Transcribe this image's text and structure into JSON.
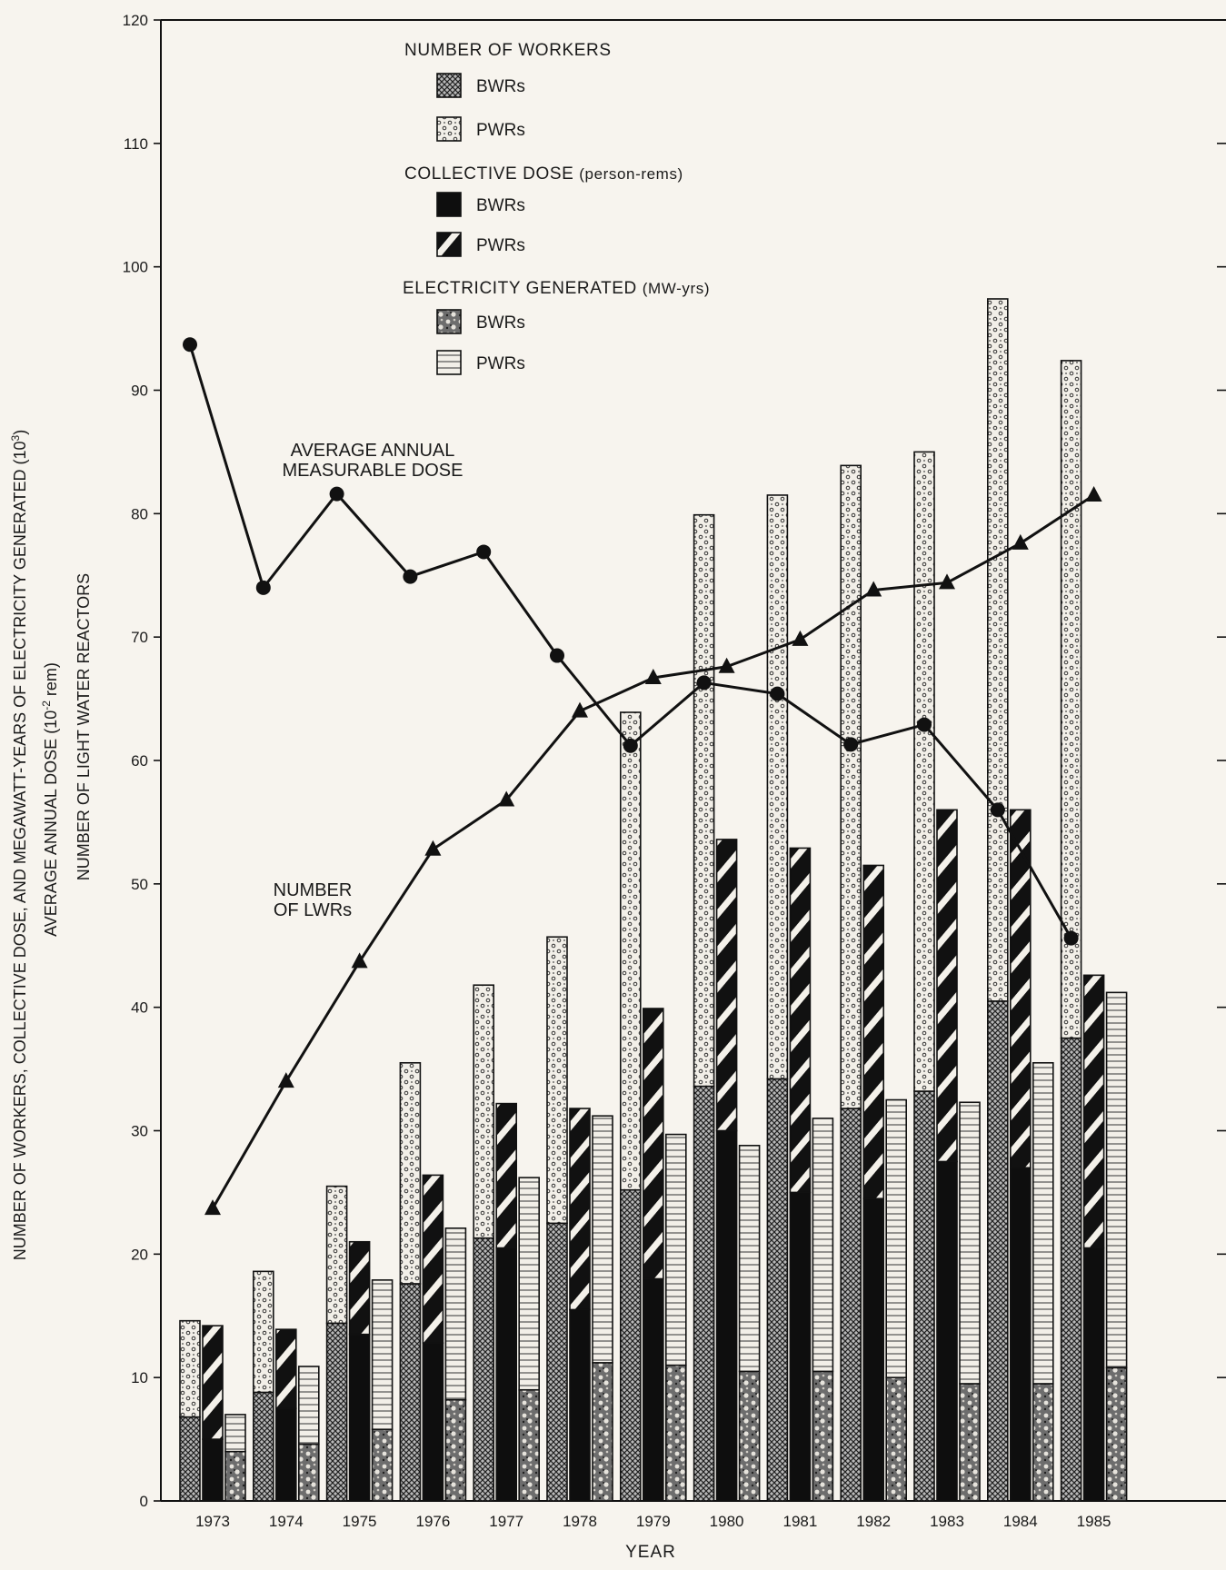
{
  "chart_data": {
    "type": "bar",
    "categories": [
      "1973",
      "1974",
      "1975",
      "1976",
      "1977",
      "1978",
      "1979",
      "1980",
      "1981",
      "1982",
      "1983",
      "1984",
      "1985"
    ],
    "xlabel": "YEAR",
    "ylabel_lines": [
      "NUMBER OF WORKERS, COLLECTIVE DOSE, AND MEGAWATT-YEARS OF ELECTRICITY GENERATED (10",
      "AVERAGE ANNUAL DOSE (10",
      "NUMBER OF LIGHT WATER REACTORS"
    ],
    "ylabel_superscripts": [
      "3",
      "-2"
    ],
    "ylabel_suffixes": [
      ")",
      " rem)"
    ],
    "ylim": [
      0,
      120
    ],
    "yticks": [
      0,
      10,
      20,
      30,
      40,
      50,
      60,
      70,
      80,
      90,
      100,
      110,
      120
    ],
    "ytick_labels": [
      "0",
      "10",
      "20",
      "30",
      "40",
      "50",
      "60",
      "70",
      "80",
      "90",
      "100",
      "110",
      "120"
    ],
    "bar_groups": [
      {
        "name": "NUMBER OF WORKERS",
        "stacked": true,
        "series": [
          {
            "name": "BWRs",
            "pattern": "crosshatch",
            "values": [
              6.8,
              8.8,
              14.4,
              17.6,
              21.3,
              22.5,
              25.2,
              33.6,
              34.2,
              31.8,
              33.2,
              40.5,
              37.5
            ]
          },
          {
            "name": "PWRs",
            "pattern": "dotted",
            "values": [
              7.8,
              9.8,
              11.1,
              17.9,
              20.5,
              23.2,
              38.7,
              46.3,
              47.3,
              52.1,
              51.8,
              56.9,
              54.9
            ]
          }
        ],
        "totals": [
          14.6,
          18.6,
          25.5,
          35.5,
          41.8,
          45.7,
          63.9,
          79.9,
          81.5,
          83.9,
          85.0,
          97.4,
          92.4
        ]
      },
      {
        "name": "COLLECTIVE DOSE (person-rems)",
        "stacked": true,
        "series": [
          {
            "name": "BWRs",
            "pattern": "solid",
            "values": [
              5.0,
              7.5,
              13.5,
              12.8,
              20.5,
              15.5,
              18.0,
              30.0,
              25.0,
              24.5,
              27.5,
              27.0,
              20.5
            ]
          },
          {
            "name": "PWRs",
            "pattern": "diagonal",
            "values": [
              9.2,
              6.4,
              7.5,
              13.6,
              11.7,
              16.3,
              21.9,
              23.6,
              27.9,
              27.0,
              28.5,
              29.0,
              22.1
            ]
          }
        ],
        "totals": [
          14.2,
          13.9,
          21.0,
          26.4,
          32.2,
          31.8,
          39.9,
          53.6,
          52.9,
          51.5,
          56.0,
          56.0,
          42.6
        ]
      },
      {
        "name": "ELECTRICITY GENERATED (MW-yrs)",
        "stacked": true,
        "series": [
          {
            "name": "BWRs",
            "pattern": "speckled",
            "values": [
              4.0,
              4.6,
              5.8,
              8.2,
              9.0,
              11.2,
              11.0,
              10.5,
              10.5,
              10.0,
              9.5,
              9.5,
              10.8
            ]
          },
          {
            "name": "PWRs",
            "pattern": "horizontal-lines",
            "values": [
              3.0,
              6.3,
              12.1,
              13.9,
              17.2,
              20.0,
              18.7,
              18.3,
              20.5,
              22.5,
              22.8,
              26.0,
              30.4
            ]
          }
        ],
        "totals": [
          7.0,
          10.9,
          17.9,
          22.1,
          26.2,
          31.2,
          29.7,
          28.8,
          31.0,
          32.5,
          32.3,
          35.5,
          41.2
        ]
      }
    ],
    "lines": [
      {
        "label_lines": [
          "AVERAGE ANNUAL",
          "MEASURABLE DOSE"
        ],
        "marker": "circle",
        "values": [
          93.7,
          74.0,
          81.6,
          74.9,
          76.9,
          68.5,
          61.2,
          66.3,
          65.4,
          61.3,
          62.9,
          56.0,
          45.6
        ]
      },
      {
        "label_lines": [
          "NUMBER",
          "OF LWRs"
        ],
        "marker": "triangle",
        "values": [
          23.7,
          34.0,
          43.7,
          52.8,
          56.8,
          64.0,
          66.7,
          67.6,
          69.8,
          73.8,
          74.4,
          77.6,
          81.5
        ]
      }
    ],
    "legend": {
      "placement": "top-center",
      "groups": [
        {
          "title": "NUMBER OF WORKERS",
          "items": [
            {
              "label": "BWRs",
              "pattern": "crosshatch"
            },
            {
              "label": "PWRs",
              "pattern": "dotted"
            }
          ]
        },
        {
          "title_main": "COLLECTIVE DOSE",
          "title_sub": "(person-rems)",
          "items": [
            {
              "label": "BWRs",
              "pattern": "solid"
            },
            {
              "label": "PWRs",
              "pattern": "diagonal"
            }
          ]
        },
        {
          "title_main": "ELECTRICITY GENERATED",
          "title_sub": "(MW-yrs)",
          "items": [
            {
              "label": "BWRs",
              "pattern": "speckled"
            },
            {
              "label": "PWRs",
              "pattern": "horizontal-lines"
            }
          ]
        }
      ]
    },
    "grid": false,
    "colors": {
      "background": "#f7f4ee",
      "ink": "#111111"
    }
  }
}
